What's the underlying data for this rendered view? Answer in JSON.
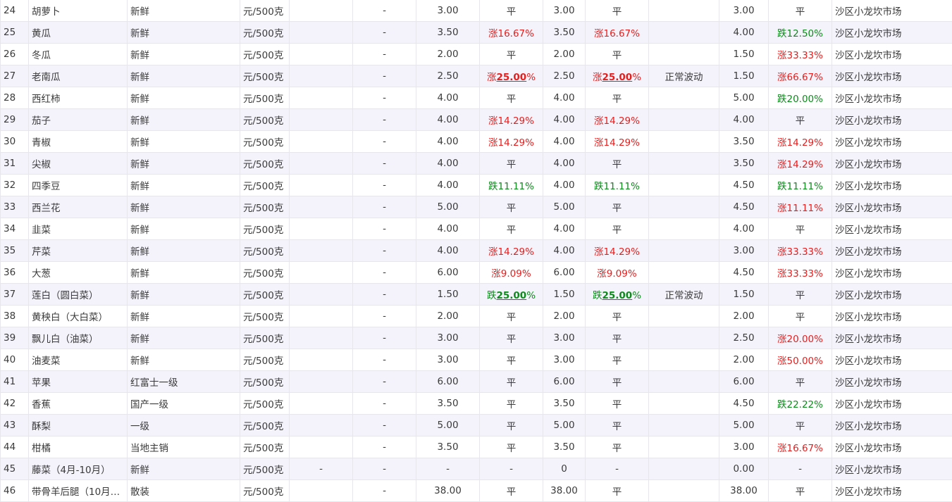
{
  "rows": [
    {
      "no": "24",
      "name": "胡萝卜",
      "spec": "新鲜",
      "unit": "元/500克",
      "blank": "",
      "dash": "-",
      "p1": "3.00",
      "ch1": {
        "type": "flat",
        "text": "平"
      },
      "p2": "3.00",
      "ch2": {
        "type": "flat",
        "text": "平"
      },
      "note": "",
      "p3": "3.00",
      "ch3": {
        "type": "flat",
        "text": "平"
      },
      "market": "沙区小龙坎市场"
    },
    {
      "no": "25",
      "name": "黄瓜",
      "spec": "新鲜",
      "unit": "元/500克",
      "blank": "",
      "dash": "-",
      "p1": "3.50",
      "ch1": {
        "type": "up",
        "prefix": "涨",
        "num": "16.67",
        "strong": false
      },
      "p2": "3.50",
      "ch2": {
        "type": "up",
        "prefix": "涨",
        "num": "16.67",
        "strong": false
      },
      "note": "",
      "p3": "4.00",
      "ch3": {
        "type": "down",
        "prefix": "跌",
        "num": "12.50",
        "strong": false
      },
      "market": "沙区小龙坎市场"
    },
    {
      "no": "26",
      "name": "冬瓜",
      "spec": "新鲜",
      "unit": "元/500克",
      "blank": "",
      "dash": "-",
      "p1": "2.00",
      "ch1": {
        "type": "flat",
        "text": "平"
      },
      "p2": "2.00",
      "ch2": {
        "type": "flat",
        "text": "平"
      },
      "note": "",
      "p3": "1.50",
      "ch3": {
        "type": "up",
        "prefix": "涨",
        "num": "33.33",
        "strong": false
      },
      "market": "沙区小龙坎市场"
    },
    {
      "no": "27",
      "name": "老南瓜",
      "spec": "新鲜",
      "unit": "元/500克",
      "blank": "",
      "dash": "-",
      "p1": "2.50",
      "ch1": {
        "type": "up",
        "prefix": "涨",
        "num": "25.00",
        "strong": true
      },
      "p2": "2.50",
      "ch2": {
        "type": "up",
        "prefix": "涨",
        "num": "25.00",
        "strong": true
      },
      "note": "正常波动",
      "p3": "1.50",
      "ch3": {
        "type": "up",
        "prefix": "涨",
        "num": "66.67",
        "strong": false
      },
      "market": "沙区小龙坎市场"
    },
    {
      "no": "28",
      "name": "西红柿",
      "spec": "新鲜",
      "unit": "元/500克",
      "blank": "",
      "dash": "-",
      "p1": "4.00",
      "ch1": {
        "type": "flat",
        "text": "平"
      },
      "p2": "4.00",
      "ch2": {
        "type": "flat",
        "text": "平"
      },
      "note": "",
      "p3": "5.00",
      "ch3": {
        "type": "down",
        "prefix": "跌",
        "num": "20.00",
        "strong": false
      },
      "market": "沙区小龙坎市场"
    },
    {
      "no": "29",
      "name": "茄子",
      "spec": "新鲜",
      "unit": "元/500克",
      "blank": "",
      "dash": "-",
      "p1": "4.00",
      "ch1": {
        "type": "up",
        "prefix": "涨",
        "num": "14.29",
        "strong": false
      },
      "p2": "4.00",
      "ch2": {
        "type": "up",
        "prefix": "涨",
        "num": "14.29",
        "strong": false
      },
      "note": "",
      "p3": "4.00",
      "ch3": {
        "type": "flat",
        "text": "平"
      },
      "market": "沙区小龙坎市场"
    },
    {
      "no": "30",
      "name": "青椒",
      "spec": "新鲜",
      "unit": "元/500克",
      "blank": "",
      "dash": "-",
      "p1": "4.00",
      "ch1": {
        "type": "up",
        "prefix": "涨",
        "num": "14.29",
        "strong": false
      },
      "p2": "4.00",
      "ch2": {
        "type": "up",
        "prefix": "涨",
        "num": "14.29",
        "strong": false
      },
      "note": "",
      "p3": "3.50",
      "ch3": {
        "type": "up",
        "prefix": "涨",
        "num": "14.29",
        "strong": false
      },
      "market": "沙区小龙坎市场"
    },
    {
      "no": "31",
      "name": "尖椒",
      "spec": "新鲜",
      "unit": "元/500克",
      "blank": "",
      "dash": "-",
      "p1": "4.00",
      "ch1": {
        "type": "flat",
        "text": "平"
      },
      "p2": "4.00",
      "ch2": {
        "type": "flat",
        "text": "平"
      },
      "note": "",
      "p3": "3.50",
      "ch3": {
        "type": "up",
        "prefix": "涨",
        "num": "14.29",
        "strong": false
      },
      "market": "沙区小龙坎市场"
    },
    {
      "no": "32",
      "name": "四季豆",
      "spec": "新鲜",
      "unit": "元/500克",
      "blank": "",
      "dash": "-",
      "p1": "4.00",
      "ch1": {
        "type": "down",
        "prefix": "跌",
        "num": "11.11",
        "strong": false
      },
      "p2": "4.00",
      "ch2": {
        "type": "down",
        "prefix": "跌",
        "num": "11.11",
        "strong": false
      },
      "note": "",
      "p3": "4.50",
      "ch3": {
        "type": "down",
        "prefix": "跌",
        "num": "11.11",
        "strong": false
      },
      "market": "沙区小龙坎市场"
    },
    {
      "no": "33",
      "name": "西兰花",
      "spec": "新鲜",
      "unit": "元/500克",
      "blank": "",
      "dash": "-",
      "p1": "5.00",
      "ch1": {
        "type": "flat",
        "text": "平"
      },
      "p2": "5.00",
      "ch2": {
        "type": "flat",
        "text": "平"
      },
      "note": "",
      "p3": "4.50",
      "ch3": {
        "type": "up",
        "prefix": "涨",
        "num": "11.11",
        "strong": false
      },
      "market": "沙区小龙坎市场"
    },
    {
      "no": "34",
      "name": "韭菜",
      "spec": "新鲜",
      "unit": "元/500克",
      "blank": "",
      "dash": "-",
      "p1": "4.00",
      "ch1": {
        "type": "flat",
        "text": "平"
      },
      "p2": "4.00",
      "ch2": {
        "type": "flat",
        "text": "平"
      },
      "note": "",
      "p3": "4.00",
      "ch3": {
        "type": "flat",
        "text": "平"
      },
      "market": "沙区小龙坎市场"
    },
    {
      "no": "35",
      "name": "芹菜",
      "spec": "新鲜",
      "unit": "元/500克",
      "blank": "",
      "dash": "-",
      "p1": "4.00",
      "ch1": {
        "type": "up",
        "prefix": "涨",
        "num": "14.29",
        "strong": false
      },
      "p2": "4.00",
      "ch2": {
        "type": "up",
        "prefix": "涨",
        "num": "14.29",
        "strong": false
      },
      "note": "",
      "p3": "3.00",
      "ch3": {
        "type": "up",
        "prefix": "涨",
        "num": "33.33",
        "strong": false
      },
      "market": "沙区小龙坎市场"
    },
    {
      "no": "36",
      "name": "大葱",
      "spec": "新鲜",
      "unit": "元/500克",
      "blank": "",
      "dash": "-",
      "p1": "6.00",
      "ch1": {
        "type": "up",
        "prefix": "涨",
        "num": "9.09",
        "strong": false
      },
      "p2": "6.00",
      "ch2": {
        "type": "up",
        "prefix": "涨",
        "num": "9.09",
        "strong": false
      },
      "note": "",
      "p3": "4.50",
      "ch3": {
        "type": "up",
        "prefix": "涨",
        "num": "33.33",
        "strong": false
      },
      "market": "沙区小龙坎市场"
    },
    {
      "no": "37",
      "name": "莲白（圆白菜）",
      "spec": "新鲜",
      "unit": "元/500克",
      "blank": "",
      "dash": "-",
      "p1": "1.50",
      "ch1": {
        "type": "down",
        "prefix": "跌",
        "num": "25.00",
        "strong": true
      },
      "p2": "1.50",
      "ch2": {
        "type": "down",
        "prefix": "跌",
        "num": "25.00",
        "strong": true
      },
      "note": "正常波动",
      "p3": "1.50",
      "ch3": {
        "type": "flat",
        "text": "平"
      },
      "market": "沙区小龙坎市场"
    },
    {
      "no": "38",
      "name": "黄秧白（大白菜）",
      "spec": "新鲜",
      "unit": "元/500克",
      "blank": "",
      "dash": "-",
      "p1": "2.00",
      "ch1": {
        "type": "flat",
        "text": "平"
      },
      "p2": "2.00",
      "ch2": {
        "type": "flat",
        "text": "平"
      },
      "note": "",
      "p3": "2.00",
      "ch3": {
        "type": "flat",
        "text": "平"
      },
      "market": "沙区小龙坎市场"
    },
    {
      "no": "39",
      "name": "飘儿白（油菜）",
      "spec": "新鲜",
      "unit": "元/500克",
      "blank": "",
      "dash": "-",
      "p1": "3.00",
      "ch1": {
        "type": "flat",
        "text": "平"
      },
      "p2": "3.00",
      "ch2": {
        "type": "flat",
        "text": "平"
      },
      "note": "",
      "p3": "2.50",
      "ch3": {
        "type": "up",
        "prefix": "涨",
        "num": "20.00",
        "strong": false
      },
      "market": "沙区小龙坎市场"
    },
    {
      "no": "40",
      "name": "油麦菜",
      "spec": "新鲜",
      "unit": "元/500克",
      "blank": "",
      "dash": "-",
      "p1": "3.00",
      "ch1": {
        "type": "flat",
        "text": "平"
      },
      "p2": "3.00",
      "ch2": {
        "type": "flat",
        "text": "平"
      },
      "note": "",
      "p3": "2.00",
      "ch3": {
        "type": "up",
        "prefix": "涨",
        "num": "50.00",
        "strong": false
      },
      "market": "沙区小龙坎市场"
    },
    {
      "no": "41",
      "name": "苹果",
      "spec": "红富士一级",
      "unit": "元/500克",
      "blank": "",
      "dash": "-",
      "p1": "6.00",
      "ch1": {
        "type": "flat",
        "text": "平"
      },
      "p2": "6.00",
      "ch2": {
        "type": "flat",
        "text": "平"
      },
      "note": "",
      "p3": "6.00",
      "ch3": {
        "type": "flat",
        "text": "平"
      },
      "market": "沙区小龙坎市场"
    },
    {
      "no": "42",
      "name": "香蕉",
      "spec": "国产一级",
      "unit": "元/500克",
      "blank": "",
      "dash": "-",
      "p1": "3.50",
      "ch1": {
        "type": "flat",
        "text": "平"
      },
      "p2": "3.50",
      "ch2": {
        "type": "flat",
        "text": "平"
      },
      "note": "",
      "p3": "4.50",
      "ch3": {
        "type": "down",
        "prefix": "跌",
        "num": "22.22",
        "strong": false
      },
      "market": "沙区小龙坎市场"
    },
    {
      "no": "43",
      "name": "酥梨",
      "spec": "一级",
      "unit": "元/500克",
      "blank": "",
      "dash": "-",
      "p1": "5.00",
      "ch1": {
        "type": "flat",
        "text": "平"
      },
      "p2": "5.00",
      "ch2": {
        "type": "flat",
        "text": "平"
      },
      "note": "",
      "p3": "5.00",
      "ch3": {
        "type": "flat",
        "text": "平"
      },
      "market": "沙区小龙坎市场"
    },
    {
      "no": "44",
      "name": "柑橘",
      "spec": "当地主销",
      "unit": "元/500克",
      "blank": "",
      "dash": "-",
      "p1": "3.50",
      "ch1": {
        "type": "flat",
        "text": "平"
      },
      "p2": "3.50",
      "ch2": {
        "type": "flat",
        "text": "平"
      },
      "note": "",
      "p3": "3.00",
      "ch3": {
        "type": "up",
        "prefix": "涨",
        "num": "16.67",
        "strong": false
      },
      "market": "沙区小龙坎市场"
    },
    {
      "no": "45",
      "name": "藤菜（4月-10月）",
      "spec": "新鲜",
      "unit": "元/500克",
      "blank": "-",
      "dash": "-",
      "p1": "-",
      "ch1": {
        "type": "flat",
        "text": "-"
      },
      "p2": "0",
      "ch2": {
        "type": "flat",
        "text": "-"
      },
      "note": "",
      "p3": "0.00",
      "ch3": {
        "type": "flat",
        "text": "-"
      },
      "market": "沙区小龙坎市场"
    },
    {
      "no": "46",
      "name": "带骨羊后腿（10月…",
      "spec": "散装",
      "unit": "元/500克",
      "blank": "",
      "dash": "-",
      "p1": "38.00",
      "ch1": {
        "type": "flat",
        "text": "平"
      },
      "p2": "38.00",
      "ch2": {
        "type": "flat",
        "text": "平"
      },
      "note": "",
      "p3": "38.00",
      "ch3": {
        "type": "flat",
        "text": "平"
      },
      "market": "沙区小龙坎市场"
    }
  ],
  "colors": {
    "up": "#e4201f",
    "down": "#0e8a1c",
    "row_alt": "#f4f3fb",
    "border": "#e6e6ec"
  }
}
